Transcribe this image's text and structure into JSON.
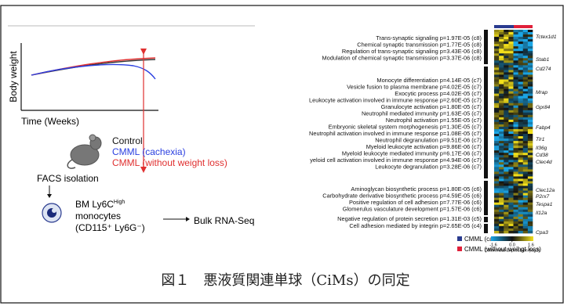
{
  "panel_a": {
    "y_label": "Body weight",
    "x_label": "Time (Weeks)",
    "groups": [
      "Control",
      "CMML (cachexia)",
      "CMML (without weight loss)"
    ],
    "facs": "FACS isolation",
    "cell_name": "BM Ly6C",
    "cell_sup": "High",
    "cell_line2": "monocytes",
    "cell_line3": "(CD115⁺ Ly6G⁻)",
    "rnaseq": "Bulk RNA-Seq"
  },
  "panel_b": {
    "terms": [
      "Trans-synaptic signaling p=1.97E-05 (c8)",
      "Chemical synaptic transmission p=1.77E-05 (c8)",
      "Regulation of trans-synaptic signaling p=3.43E-06 (c8)",
      "Modulation of chemical synaptic transmission p=3.37E-06 (c8)",
      "Monocyte differentiation p=4.14E-05 (c7)",
      "Vesicle fusion to plasma membrane p=4.02E-05 (c7)",
      "Exocytic process p=4.02E-05 (c7)",
      "Leukocyte activation involved in immune response p=2.60E-05 (c7)",
      "Granulocyte activation p=1.80E-05 (c7)",
      "Neutrophil mediated immunity p=1.63E-05 (c7)",
      "Neutrophil activation p=1.55E-05 (c7)",
      "Embryonic skeletal system morphogenesis p=1.30E-05 (c7)",
      "Neutrophil activation involved in immune response p=1.08E-05 (c7)",
      "Neutrophil degranulation p=9.51E-06 (c7)",
      "Myeloid leukocyte activation p=9.86E-06 (c7)",
      "Myeloid leukocyte mediated immunity p=6.17E-06 (c7)",
      "yeloid cell activation involved in immune response p=4.94E-06 (c7)",
      "Leukocyte degranulation p=3.28E-06 (c7)",
      "Aminoglycan biosynthetic process p=1.80E-05 (c6)",
      "Carbohydrate derivative biosynthetic process p=4.59E-05 (c6)",
      "Positive regulation of cell adhesion p=7.77E-06 (c6)",
      "Glomerulus vasculature development p=1.57E-06 (c6)",
      "Negative regulation of protein secretion p=1.31E-03 (c5)",
      "Cell adhesion mediated by integrin p=2.65E-05 (c4)"
    ],
    "genes": [
      "Tctex1d1",
      "Stab1",
      "Cd274",
      "Mrap",
      "Gpr84",
      "Fabp4",
      "Tlr1",
      "Il36g",
      "Cd38",
      "Clec4d",
      "Clec12a",
      "P2rx7",
      "Tespa1",
      "Il12a",
      "Cpa3"
    ],
    "legend": [
      "CMML (cachexia)",
      "CMML (without weihgt loss)"
    ],
    "colorbar_ticks": [
      "-1.6",
      "0.0",
      "1.6"
    ],
    "colorbar_title": "Differential Expression (log2)"
  },
  "caption": "図１　悪液質関連単球（CiMs）の同定"
}
